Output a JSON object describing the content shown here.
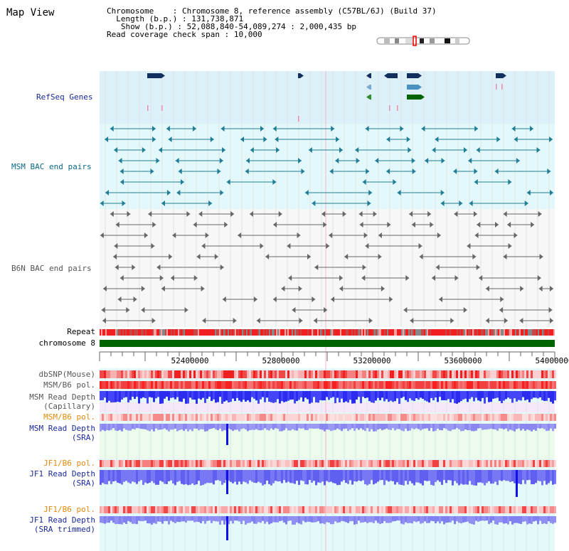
{
  "title": "Map View",
  "info": {
    "chromosome_key": "Chromosome",
    "chromosome_val": "Chromosome 8, reference assembly (C57BL/6J) (Build 37)",
    "length_key": "Length (b.p.)",
    "length_val": "131,738,871",
    "show_key": "Show (b.p.)",
    "show_val": "52,088,840-54,089,274 : 2,000,435 bp",
    "coverage_key": "Read coverage check span",
    "coverage_val": "10,000"
  },
  "tracks": {
    "refseq": "RefSeq Genes",
    "msm_bac": "MSM BAC end pairs",
    "b6n_bac": "B6N BAC end pairs",
    "repeat": "Repeat",
    "chromosome": "chromosome 8",
    "dbsnp": "dbSNP(Mouse)",
    "msm_b6_pol_1": "MSM/B6 pol.",
    "msm_read_depth_cap_1": "MSM Read Depth",
    "msm_read_depth_cap_2": "(Capillary)",
    "msm_b6_pol_2": "MSM/B6 pol.",
    "msm_read_depth_sra_1": "MSM Read Depth",
    "msm_read_depth_sra_2": "(SRA)",
    "jf1_b6_pol_1": "JF1/B6 pol.",
    "jf1_read_depth_sra_1": "JF1 Read Depth",
    "jf1_read_depth_sra_2": "(SRA)",
    "jf1_b6_pol_2": "JF1/B6 pol.",
    "jf1_read_depth_trim_1": "JF1 Read Depth",
    "jf1_read_depth_trim_2": "(SRA trimmed)"
  },
  "axis": {
    "ticks": [
      "52400000",
      "52800000",
      "53200000",
      "53600000",
      "54000000"
    ]
  },
  "colors": {
    "refseq_bg": "#dcf0fa",
    "msm_bg": "#e3f8fb",
    "b6n_bg": "#f7f7f7",
    "gene": "#132f5e",
    "bac_msm": "#207d96",
    "bac_b6n": "#666666",
    "chromosome_bar": "#006400",
    "pol_red": "#f03a3a",
    "depth_blue": "#3c3cf0",
    "depth_lavender": "#8080f0"
  }
}
